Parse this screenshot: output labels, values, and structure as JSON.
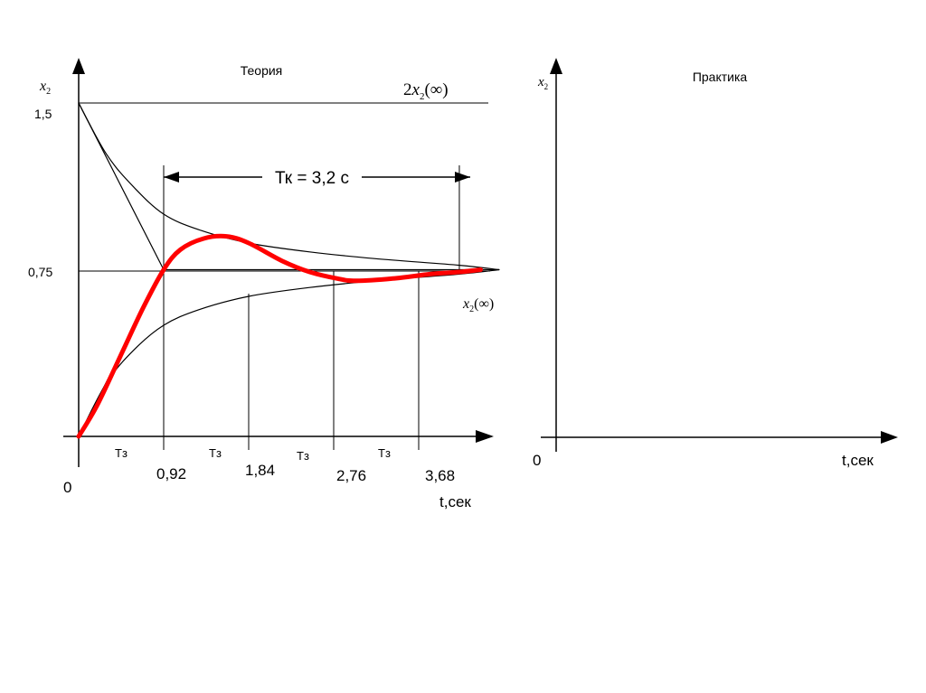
{
  "chart_data": [
    {
      "type": "line",
      "title": "Теория",
      "xlabel": "t,сек",
      "ylabel_base": "x",
      "ylabel_sub": "2",
      "origin_label": "0",
      "x_ticks": [
        {
          "label": "0,92",
          "period_label": "Тз"
        },
        {
          "label": "1,84",
          "period_label": "Тз"
        },
        {
          "label": "2,76",
          "period_label": "Тз"
        },
        {
          "label": "3,68",
          "period_label": "Тз"
        }
      ],
      "y_ticks": [
        "0,75",
        "1,5"
      ],
      "settling": {
        "label": "Тк = 3,2 с",
        "t_start": 0.92,
        "duration": 3.2
      },
      "annotations": [
        {
          "text": "2x₂(∞)",
          "coef": "2",
          "base": "x",
          "sub": "2",
          "arg": "(∞)"
        },
        {
          "text": "x₂(∞)",
          "coef": "",
          "base": "x",
          "sub": "2",
          "arg": "(∞)"
        }
      ],
      "xlim": [
        0,
        4.5
      ],
      "ylim": [
        0,
        1.7
      ],
      "series": [
        {
          "color": "#000000",
          "x": [
            0,
            0.3,
            0.6,
            0.92,
            1.3,
            1.84,
            2.5,
            3.2,
            4.12,
            4.55
          ],
          "y": [
            1.5,
            1.27,
            1.12,
            1.0,
            0.93,
            0.87,
            0.83,
            0.8,
            0.77,
            0.75
          ]
        },
        {
          "color": "#000000",
          "x": [
            0,
            0.3,
            0.6,
            0.92,
            1.3,
            1.84,
            2.5,
            3.2,
            4.12,
            4.55
          ],
          "y": [
            0,
            0.24,
            0.39,
            0.5,
            0.57,
            0.63,
            0.67,
            0.7,
            0.73,
            0.75
          ]
        },
        {
          "color": "#000000",
          "x": [
            0,
            0.92,
            4.55
          ],
          "y": [
            1.5,
            0.75,
            0.75
          ]
        },
        {
          "color": "#000000",
          "x": [
            0,
            0.92
          ],
          "y": [
            0,
            0.75
          ]
        },
        {
          "color": "#ff0000",
          "x": [
            0,
            0.2,
            0.45,
            0.7,
            0.92,
            1.1,
            1.35,
            1.6,
            1.84,
            2.2,
            2.5,
            2.8,
            3.0,
            3.4,
            3.8,
            4.12,
            4.35
          ],
          "y": [
            0,
            0.14,
            0.36,
            0.58,
            0.75,
            0.84,
            0.89,
            0.9,
            0.87,
            0.79,
            0.74,
            0.71,
            0.7,
            0.71,
            0.73,
            0.74,
            0.75
          ]
        }
      ]
    },
    {
      "type": "line",
      "title": "Практика",
      "xlabel": "t,сек",
      "ylabel_base": "x",
      "ylabel_sub": "2",
      "origin_label": "0",
      "series": []
    }
  ]
}
